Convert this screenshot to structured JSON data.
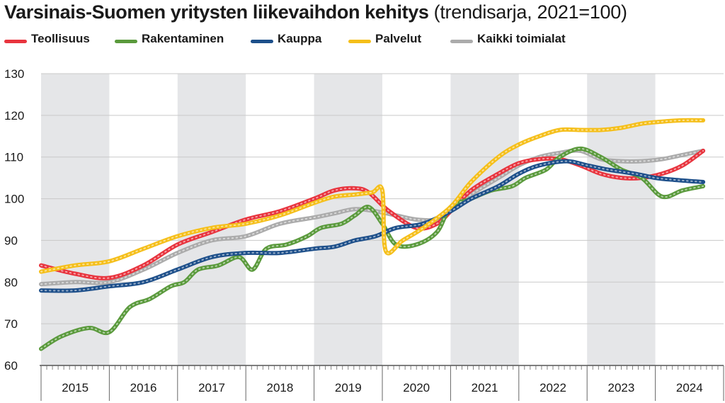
{
  "title": {
    "main": "Varsinais-Suomen yritysten liikevaihdon kehitys",
    "sub": " (trendisarja, 2021=100)"
  },
  "chart_data": {
    "type": "line",
    "x_unit": "year",
    "xlim": [
      2015,
      2025
    ],
    "ylim": [
      60,
      130
    ],
    "yticks": [
      60,
      70,
      80,
      90,
      100,
      110,
      120,
      130
    ],
    "xtick_labels": [
      "2015",
      "2016",
      "2017",
      "2018",
      "2019",
      "2020",
      "2021",
      "2022",
      "2023",
      "2024"
    ],
    "alternating_year_shading": true,
    "legend_position": "top",
    "series": [
      {
        "name": "Teollisuus",
        "color": "#e8343e",
        "x": [
          2015.0,
          2015.5,
          2016.0,
          2016.5,
          2017.0,
          2017.5,
          2018.0,
          2018.5,
          2019.0,
          2019.3,
          2019.6,
          2019.8,
          2020.1,
          2020.5,
          2020.8,
          2021.0,
          2021.3,
          2021.7,
          2022.0,
          2022.3,
          2022.6,
          2022.9,
          2023.2,
          2023.5,
          2023.8,
          2024.1,
          2024.4,
          2024.7
        ],
        "y": [
          84,
          82,
          81,
          84,
          89,
          92,
          95,
          97,
          100,
          102,
          102.5,
          101.5,
          97,
          93,
          94,
          97,
          102,
          106,
          108.5,
          109.5,
          109.5,
          108,
          106,
          105,
          105,
          106,
          108,
          111.5
        ]
      },
      {
        "name": "Rakentaminen",
        "color": "#5a9a3c",
        "x": [
          2015.0,
          2015.3,
          2015.7,
          2016.0,
          2016.3,
          2016.6,
          2016.9,
          2017.1,
          2017.3,
          2017.6,
          2017.9,
          2018.1,
          2018.3,
          2018.6,
          2018.9,
          2019.1,
          2019.4,
          2019.6,
          2019.8,
          2020.0,
          2020.2,
          2020.5,
          2020.8,
          2021.0,
          2021.3,
          2021.6,
          2021.9,
          2022.1,
          2022.4,
          2022.6,
          2022.9,
          2023.2,
          2023.5,
          2023.8,
          2024.1,
          2024.4,
          2024.7
        ],
        "y": [
          64,
          67,
          69,
          68,
          74,
          76,
          79,
          80,
          83,
          84,
          86,
          83,
          88,
          89,
          91,
          93,
          94,
          96,
          98,
          94,
          89,
          89,
          92,
          98,
          100,
          102,
          103,
          105,
          107,
          110,
          112,
          110,
          107,
          105,
          100.5,
          102,
          103
        ]
      },
      {
        "name": "Kauppa",
        "color": "#1d4f8a",
        "x": [
          2015.0,
          2015.5,
          2016.0,
          2016.5,
          2017.0,
          2017.5,
          2018.0,
          2018.5,
          2019.0,
          2019.3,
          2019.6,
          2019.9,
          2020.2,
          2020.6,
          2021.0,
          2021.3,
          2021.7,
          2022.0,
          2022.3,
          2022.7,
          2023.0,
          2023.3,
          2023.7,
          2024.0,
          2024.3,
          2024.7
        ],
        "y": [
          78,
          78,
          79,
          80,
          83,
          86,
          87,
          87,
          88,
          88.5,
          90,
          91,
          93,
          94,
          97,
          100,
          103,
          106,
          108,
          109,
          108,
          107,
          106,
          105,
          104.5,
          104
        ]
      },
      {
        "name": "Palvelut",
        "color": "#f5bf1a",
        "x": [
          2015.0,
          2015.5,
          2016.0,
          2016.5,
          2017.0,
          2017.5,
          2018.0,
          2018.5,
          2019.0,
          2019.3,
          2019.6,
          2019.85,
          2020.0,
          2020.05,
          2020.3,
          2020.6,
          2021.0,
          2021.3,
          2021.7,
          2022.0,
          2022.3,
          2022.6,
          2022.9,
          2023.2,
          2023.5,
          2023.8,
          2024.1,
          2024.4,
          2024.7
        ],
        "y": [
          82.5,
          84,
          85,
          88,
          91,
          93,
          94,
          96,
          99,
          100.5,
          101,
          101.5,
          102,
          87.5,
          90,
          93,
          98,
          104,
          110,
          113,
          115,
          116.5,
          116.5,
          116.5,
          117,
          118,
          118.5,
          118.8,
          118.8
        ]
      },
      {
        "name": "Kaikki toimialat",
        "color": "#ababab",
        "x": [
          2015.0,
          2015.5,
          2016.0,
          2016.5,
          2017.0,
          2017.5,
          2018.0,
          2018.5,
          2019.0,
          2019.3,
          2019.6,
          2019.9,
          2020.2,
          2020.5,
          2020.8,
          2021.0,
          2021.3,
          2021.7,
          2022.0,
          2022.3,
          2022.6,
          2022.9,
          2023.2,
          2023.5,
          2023.8,
          2024.1,
          2024.4,
          2024.7
        ],
        "y": [
          79.5,
          80,
          80,
          83,
          87,
          90,
          91,
          94,
          95.5,
          96.5,
          97.5,
          97,
          96,
          95,
          95,
          97,
          101,
          105,
          108,
          110,
          111,
          111.5,
          109.5,
          109,
          109,
          109.5,
          110.5,
          111.5
        ]
      }
    ]
  }
}
